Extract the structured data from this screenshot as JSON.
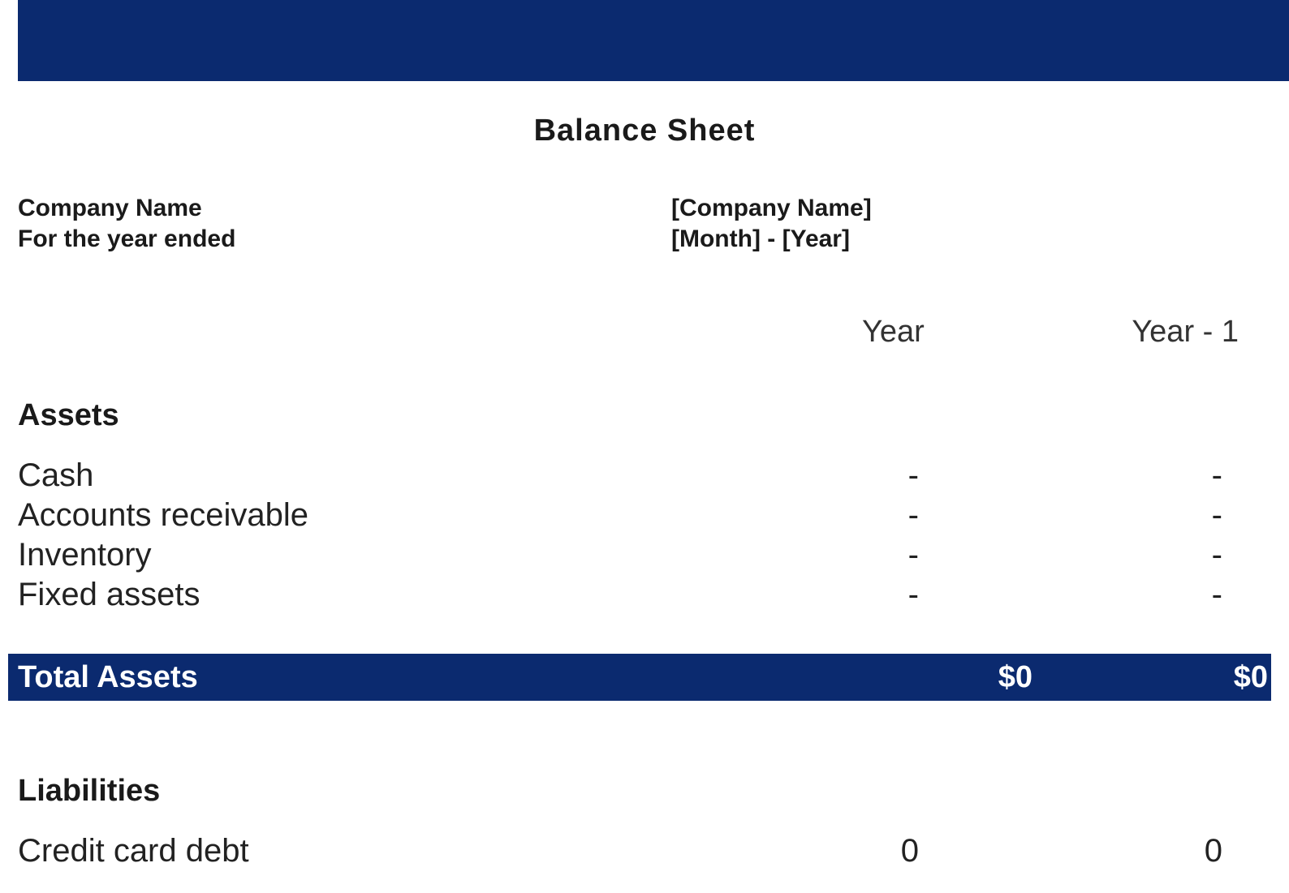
{
  "colors": {
    "banner": "#0b2a6f",
    "total_bar_bg": "#0b2a6f",
    "total_bar_text": "#ffffff",
    "page_bg": "#ffffff",
    "text": "#1a1a1a"
  },
  "title": "Balance Sheet",
  "info": {
    "label_company": "Company Name",
    "label_period": "For the year ended",
    "value_company": "[Company Name]",
    "value_period": "[Month] - [Year]"
  },
  "columns": {
    "year": "Year",
    "year_minus_1": "Year - 1"
  },
  "assets": {
    "section_title": "Assets",
    "items": [
      {
        "label": "Cash",
        "year": "-",
        "year_1": "-"
      },
      {
        "label": "Accounts receivable",
        "year": "-",
        "year_1": "-"
      },
      {
        "label": "Inventory",
        "year": "-",
        "year_1": "-"
      },
      {
        "label": "Fixed assets",
        "year": "-",
        "year_1": "-"
      }
    ],
    "total_label": "Total Assets",
    "total_year": "$0",
    "total_year_1": "$0"
  },
  "liabilities": {
    "section_title": "Liabilities",
    "items": [
      {
        "label": "Credit card debt",
        "year": "0",
        "year_1": "0"
      }
    ]
  }
}
